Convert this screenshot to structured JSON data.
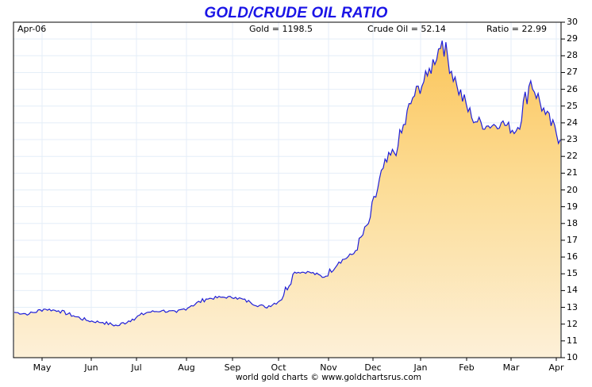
{
  "header": {
    "title": "GOLD/CRUDE OIL RATIO",
    "start_label": "Apr-06",
    "gold_label": "Gold = 1198.5",
    "crude_label": "Crude Oil = 52.14",
    "ratio_label": "Ratio = 22.99"
  },
  "footer": {
    "credit": "world gold charts © www.goldchartsrus.com"
  },
  "colors": {
    "title": "#1a14e6",
    "line": "#2020d8",
    "fill_top": "#fbc85a",
    "fill_bottom": "#fdf0d8",
    "grid": "#e4eef8"
  },
  "chart_data": {
    "type": "area",
    "title": "GOLD/CRUDE OIL RATIO",
    "xlabel": "",
    "ylabel": "",
    "ylim": [
      10,
      30
    ],
    "grid": true,
    "legend": "none",
    "x_ticks": [
      "May",
      "Jun",
      "Jul",
      "Aug",
      "Sep",
      "Oct",
      "Nov",
      "Dec",
      "Jan",
      "Feb",
      "Mar",
      "Apr"
    ],
    "y_ticks": [
      10,
      11,
      12,
      13,
      14,
      15,
      16,
      17,
      18,
      19,
      20,
      21,
      22,
      23,
      24,
      25,
      26,
      27,
      28,
      29,
      30
    ],
    "annotations": [
      "Apr-06",
      "Gold = 1198.5",
      "Crude Oil = 52.14",
      "Ratio = 22.99"
    ],
    "series": [
      {
        "name": "Gold/Crude Oil Ratio",
        "x": [
          "Apr-06",
          "Apr-20",
          "May-01",
          "May-10",
          "May-20",
          "Jun-01",
          "Jun-10",
          "Jun-20",
          "Jul-01",
          "Jul-10",
          "Jul-20",
          "Aug-01",
          "Aug-10",
          "Aug-20",
          "Sep-01",
          "Sep-10",
          "Sep-20",
          "Oct-01",
          "Oct-10",
          "Oct-20",
          "Nov-01",
          "Nov-10",
          "Nov-20",
          "Dec-01",
          "Dec-10",
          "Dec-20",
          "Jan-01",
          "Jan-10",
          "Jan-20",
          "Jan-28",
          "Feb-01",
          "Feb-10",
          "Feb-20",
          "Mar-01",
          "Mar-10",
          "Mar-20",
          "Mar-28",
          "Apr-03"
        ],
        "values": [
          12.7,
          12.6,
          12.9,
          12.8,
          12.5,
          12.2,
          12.1,
          11.9,
          12.3,
          12.7,
          12.8,
          12.7,
          13.1,
          13.5,
          13.6,
          13.6,
          13.3,
          13.0,
          13.4,
          15.1,
          15.1,
          14.8,
          15.7,
          16.2,
          18.0,
          21.3,
          22.6,
          25.5,
          26.8,
          28.9,
          26.2,
          24.3,
          23.8,
          24.0,
          23.5,
          26.5,
          24.5,
          22.99
        ]
      }
    ]
  }
}
